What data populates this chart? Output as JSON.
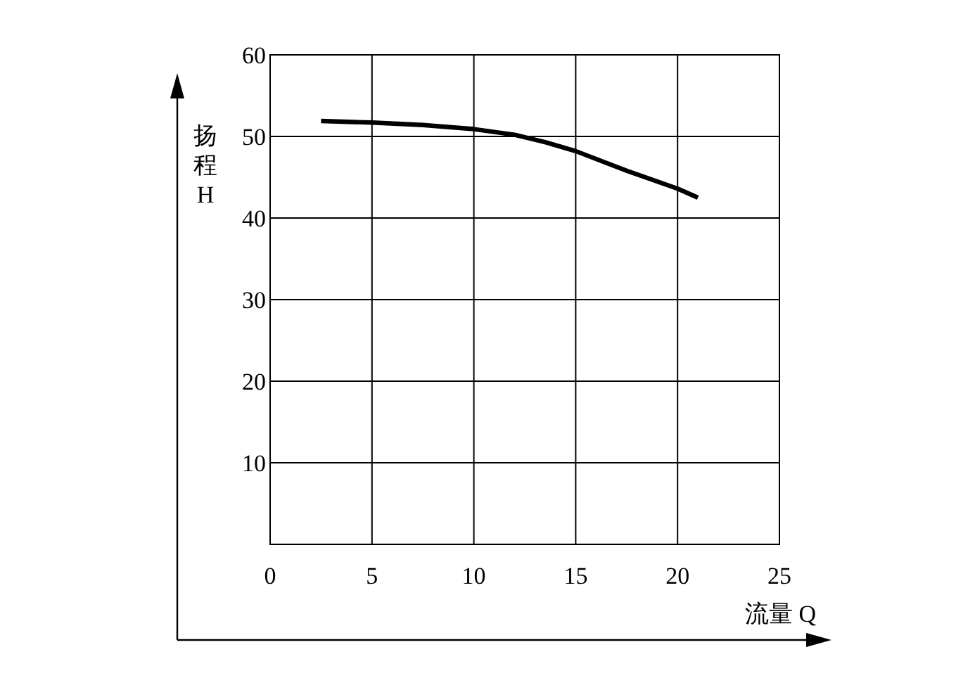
{
  "chart_data": {
    "type": "line",
    "xlabel": "流量 Q",
    "ylabel": "扬程 H",
    "x": [
      2.5,
      5,
      7.5,
      10,
      12,
      13.5,
      15,
      17.5,
      20,
      21
    ],
    "series": [
      {
        "color": "#000000",
        "values": [
          51.9,
          51.7,
          51.4,
          50.9,
          50.2,
          49.3,
          48.2,
          45.8,
          43.6,
          42.5
        ]
      }
    ],
    "xlim": [
      0,
      25
    ],
    "ylim": [
      0,
      60
    ],
    "xticks": [
      0,
      5,
      10,
      15,
      20,
      25
    ],
    "yticks": [
      10,
      20,
      30,
      40,
      50,
      60
    ],
    "grid": true,
    "marker": "none",
    "line_style": "solid"
  }
}
